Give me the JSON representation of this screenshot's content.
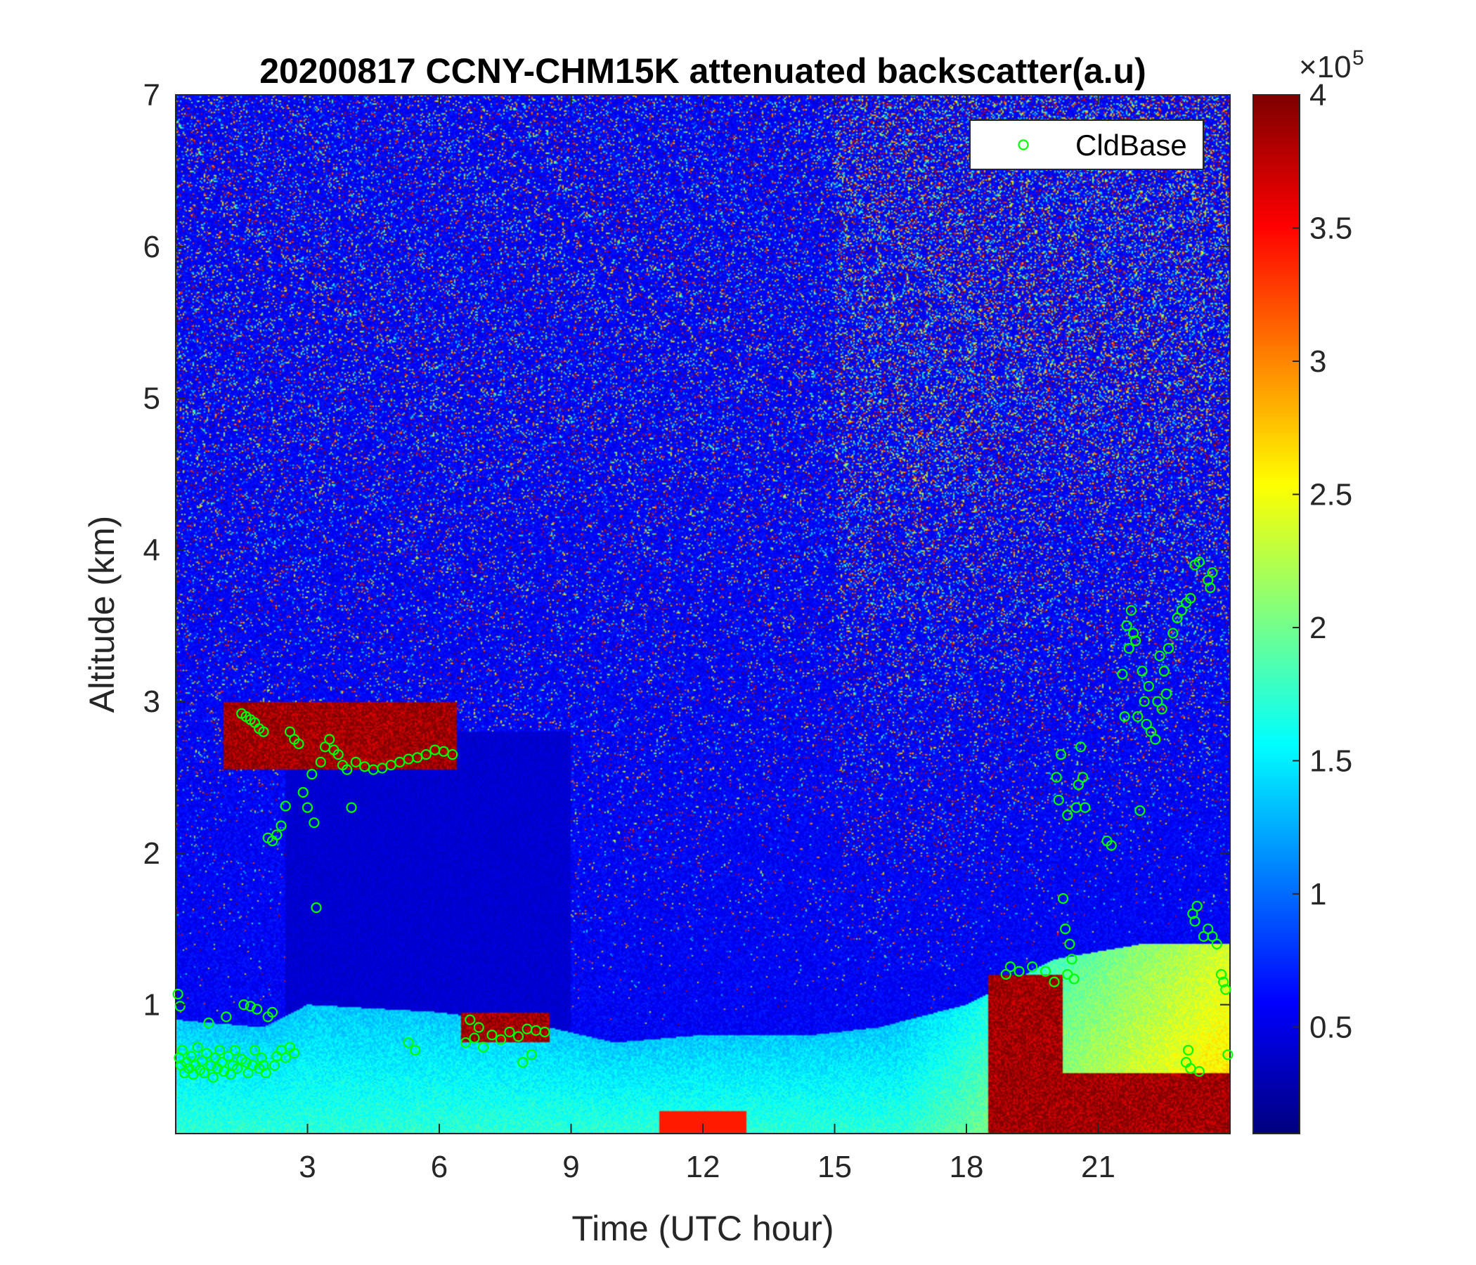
{
  "chart_data": {
    "type": "heatmap",
    "title": "20200817 CCNY-CHM15K attenuated backscatter(a.u)",
    "xlabel": "Time (UTC hour)",
    "ylabel": "Altitude (km)",
    "xlim": [
      0,
      24
    ],
    "ylim": [
      0.15,
      7
    ],
    "xticks": [
      3,
      6,
      9,
      12,
      15,
      18,
      21
    ],
    "xtick_labels": [
      "3",
      "6",
      "9",
      "12",
      "15",
      "18",
      "21"
    ],
    "yticks": [
      1,
      2,
      3,
      4,
      5,
      6,
      7
    ],
    "ytick_labels": [
      "1",
      "2",
      "3",
      "4",
      "5",
      "6",
      "7"
    ],
    "colormap": "jet",
    "colorbar": {
      "range": [
        10000,
        400000
      ],
      "ticks": [
        0.5,
        1,
        1.5,
        2,
        2.5,
        3,
        3.5,
        4
      ],
      "tick_labels": [
        "0.5",
        "1",
        "1.5",
        "2",
        "2.5",
        "3",
        "3.5",
        "4"
      ],
      "exponent_label": "×10",
      "exponent_power": "5"
    },
    "legend": {
      "placement": "top-right",
      "entries": [
        {
          "name": "CldBase",
          "marker": "o",
          "color": "#00ff00"
        }
      ]
    },
    "features": {
      "boundary_layer_top_km": [
        {
          "t": 0,
          "h": 0.9
        },
        {
          "t": 2,
          "h": 0.85
        },
        {
          "t": 3,
          "h": 1.0
        },
        {
          "t": 6,
          "h": 0.95
        },
        {
          "t": 8.5,
          "h": 0.85
        },
        {
          "t": 10,
          "h": 0.75
        },
        {
          "t": 12,
          "h": 0.8
        },
        {
          "t": 14.5,
          "h": 0.8
        },
        {
          "t": 16,
          "h": 0.85
        },
        {
          "t": 18,
          "h": 1.0
        },
        {
          "t": 20,
          "h": 1.3
        },
        {
          "t": 22,
          "h": 1.4
        },
        {
          "t": 24,
          "h": 1.4
        }
      ],
      "high_backscatter_layers": [
        {
          "t_start": 1.1,
          "t_end": 6.4,
          "alt_km": [
            2.55,
            3.0
          ]
        },
        {
          "t_start": 6.5,
          "t_end": 8.5,
          "alt_km": [
            0.75,
            0.95
          ]
        },
        {
          "t_start": 18.5,
          "t_end": 20.2,
          "alt_km": [
            0.15,
            1.2
          ]
        },
        {
          "t_start": 20.2,
          "t_end": 24,
          "alt_km": [
            0.15,
            0.55
          ]
        }
      ]
    },
    "series": [
      {
        "name": "CldBase",
        "points": [
          [
            0.05,
            1.07
          ],
          [
            0.1,
            0.99
          ],
          [
            0.08,
            0.65
          ],
          [
            0.12,
            0.6
          ],
          [
            0.15,
            0.7
          ],
          [
            0.2,
            0.55
          ],
          [
            0.25,
            0.62
          ],
          [
            0.3,
            0.58
          ],
          [
            0.35,
            0.66
          ],
          [
            0.4,
            0.54
          ],
          [
            0.45,
            0.6
          ],
          [
            0.5,
            0.72
          ],
          [
            0.55,
            0.57
          ],
          [
            0.6,
            0.63
          ],
          [
            0.65,
            0.55
          ],
          [
            0.7,
            0.68
          ],
          [
            0.75,
            0.88
          ],
          [
            0.8,
            0.6
          ],
          [
            0.85,
            0.52
          ],
          [
            0.9,
            0.65
          ],
          [
            0.95,
            0.58
          ],
          [
            1.0,
            0.7
          ],
          [
            1.05,
            0.62
          ],
          [
            1.1,
            0.56
          ],
          [
            1.15,
            0.92
          ],
          [
            1.2,
            0.66
          ],
          [
            1.25,
            0.54
          ],
          [
            1.3,
            0.6
          ],
          [
            1.35,
            0.7
          ],
          [
            1.4,
            0.58
          ],
          [
            1.5,
            0.64
          ],
          [
            1.55,
            1.0
          ],
          [
            1.6,
            0.62
          ],
          [
            1.65,
            0.55
          ],
          [
            1.7,
            0.99
          ],
          [
            1.75,
            0.6
          ],
          [
            1.8,
            0.7
          ],
          [
            1.85,
            0.97
          ],
          [
            1.9,
            0.58
          ],
          [
            1.95,
            0.65
          ],
          [
            2.0,
            0.6
          ],
          [
            2.05,
            0.55
          ],
          [
            2.1,
            0.92
          ],
          [
            2.2,
            0.95
          ],
          [
            2.25,
            0.6
          ],
          [
            2.3,
            0.66
          ],
          [
            2.4,
            0.7
          ],
          [
            2.5,
            0.65
          ],
          [
            2.6,
            0.72
          ],
          [
            2.7,
            0.68
          ],
          [
            1.5,
            2.92
          ],
          [
            1.6,
            2.9
          ],
          [
            1.7,
            2.88
          ],
          [
            1.8,
            2.86
          ],
          [
            1.9,
            2.82
          ],
          [
            2.0,
            2.8
          ],
          [
            2.1,
            2.1
          ],
          [
            2.2,
            2.08
          ],
          [
            2.3,
            2.12
          ],
          [
            2.4,
            2.18
          ],
          [
            2.5,
            2.31
          ],
          [
            2.6,
            2.8
          ],
          [
            2.7,
            2.75
          ],
          [
            2.8,
            2.72
          ],
          [
            2.9,
            2.4
          ],
          [
            3.0,
            2.3
          ],
          [
            3.1,
            2.52
          ],
          [
            3.15,
            2.2
          ],
          [
            3.2,
            1.64
          ],
          [
            3.3,
            2.6
          ],
          [
            3.4,
            2.7
          ],
          [
            3.5,
            2.75
          ],
          [
            3.6,
            2.68
          ],
          [
            3.7,
            2.65
          ],
          [
            3.8,
            2.58
          ],
          [
            3.9,
            2.55
          ],
          [
            4.0,
            2.3
          ],
          [
            4.1,
            2.6
          ],
          [
            4.3,
            2.57
          ],
          [
            4.5,
            2.55
          ],
          [
            4.7,
            2.56
          ],
          [
            4.9,
            2.58
          ],
          [
            5.1,
            2.6
          ],
          [
            5.3,
            2.62
          ],
          [
            5.5,
            2.63
          ],
          [
            5.7,
            2.65
          ],
          [
            5.9,
            2.68
          ],
          [
            6.1,
            2.67
          ],
          [
            6.3,
            2.65
          ],
          [
            5.3,
            0.75
          ],
          [
            5.45,
            0.7
          ],
          [
            6.6,
            0.75
          ],
          [
            6.7,
            0.9
          ],
          [
            6.8,
            0.78
          ],
          [
            6.9,
            0.85
          ],
          [
            7.0,
            0.72
          ],
          [
            7.2,
            0.8
          ],
          [
            7.4,
            0.77
          ],
          [
            7.6,
            0.82
          ],
          [
            7.8,
            0.79
          ],
          [
            8.0,
            0.84
          ],
          [
            8.2,
            0.83
          ],
          [
            8.4,
            0.82
          ],
          [
            8.1,
            0.67
          ],
          [
            7.9,
            0.62
          ],
          [
            18.9,
            1.2
          ],
          [
            19.0,
            1.25
          ],
          [
            19.2,
            1.22
          ],
          [
            19.5,
            1.25
          ],
          [
            19.8,
            1.22
          ],
          [
            20.0,
            1.15
          ],
          [
            20.05,
            2.5
          ],
          [
            20.1,
            2.35
          ],
          [
            20.15,
            2.65
          ],
          [
            20.2,
            1.7
          ],
          [
            20.25,
            1.5
          ],
          [
            20.3,
            1.2
          ],
          [
            20.35,
            1.4
          ],
          [
            20.4,
            1.3
          ],
          [
            20.5,
            2.3
          ],
          [
            20.55,
            2.45
          ],
          [
            20.6,
            2.7
          ],
          [
            20.65,
            2.5
          ],
          [
            20.7,
            2.3
          ],
          [
            20.45,
            1.17
          ],
          [
            20.3,
            2.25
          ],
          [
            21.2,
            2.08
          ],
          [
            21.3,
            2.05
          ],
          [
            21.55,
            3.18
          ],
          [
            21.6,
            2.9
          ],
          [
            21.65,
            3.5
          ],
          [
            21.7,
            3.35
          ],
          [
            21.75,
            3.6
          ],
          [
            21.8,
            3.45
          ],
          [
            21.85,
            3.4
          ],
          [
            21.9,
            2.9
          ],
          [
            21.95,
            2.28
          ],
          [
            22.0,
            3.2
          ],
          [
            22.05,
            3.0
          ],
          [
            22.1,
            2.85
          ],
          [
            22.15,
            3.1
          ],
          [
            22.2,
            2.8
          ],
          [
            22.3,
            2.75
          ],
          [
            22.35,
            3.0
          ],
          [
            22.4,
            3.3
          ],
          [
            22.5,
            3.2
          ],
          [
            22.6,
            3.35
          ],
          [
            22.7,
            3.45
          ],
          [
            22.8,
            3.55
          ],
          [
            22.9,
            3.6
          ],
          [
            23.0,
            3.65
          ],
          [
            23.1,
            3.68
          ],
          [
            22.45,
            2.95
          ],
          [
            22.55,
            3.05
          ],
          [
            23.2,
            3.9
          ],
          [
            23.3,
            3.92
          ],
          [
            23.5,
            3.8
          ],
          [
            23.6,
            3.85
          ],
          [
            23.55,
            3.75
          ],
          [
            23.0,
            0.62
          ],
          [
            23.05,
            0.7
          ],
          [
            23.1,
            0.58
          ],
          [
            23.15,
            1.6
          ],
          [
            23.2,
            1.55
          ],
          [
            23.25,
            1.65
          ],
          [
            23.3,
            0.56
          ],
          [
            23.4,
            1.45
          ],
          [
            23.5,
            1.5
          ],
          [
            23.6,
            1.45
          ],
          [
            23.7,
            1.4
          ],
          [
            23.8,
            1.2
          ],
          [
            23.85,
            1.15
          ],
          [
            23.9,
            1.1
          ],
          [
            23.95,
            0.67
          ]
        ]
      }
    ]
  }
}
